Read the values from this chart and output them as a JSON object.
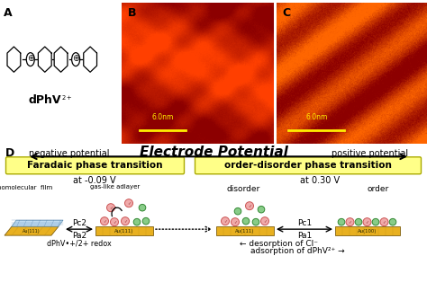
{
  "title_molecule": "dPhV",
  "title_superscript": "2+",
  "panel_A_label": "A",
  "panel_B_label": "B",
  "panel_C_label": "C",
  "panel_D_label": "D",
  "electrode_potential_title": "Electrode Potential",
  "negative_potential": "negative potential",
  "positive_potential": "positive potential",
  "faradaic_box_text": "Faradaic phase transition",
  "order_disorder_box_text": "order-disorder phase transition",
  "at_neg009": "at -0.09 V",
  "at_030": "at 0.30 V",
  "monomolecular_film": "monomolecular  film",
  "gas_like_adlayer": "gas-like adlayer",
  "disorder": "disorder",
  "order_label": "order",
  "Pc2": "Pc2",
  "Pa2": "Pa2",
  "Pc1": "Pc1",
  "Pa1": "Pa1",
  "dPhV_redox": "dPhV•+/2+ redox",
  "desorption_Cl": "← desorption of Cl⁻",
  "adsorption_dPhV": "adsorption of dPhV²⁺ →",
  "scale_bar_text": "6.0nm",
  "Au111_label": "Au(111)",
  "Au100_label": "Au(100)",
  "bg_color": "#ffffff",
  "yellow_box_color": "#ffff88",
  "faradaic_box_edge": "#aaaa00",
  "gold_surface_color": "#e8b020",
  "blue_layer_color": "#b8d8f0",
  "pink_molecule_color": "#f0aaaa",
  "pink_molecule_edge": "#cc5555",
  "green_molecule_color": "#88cc88",
  "green_molecule_edge": "#338833"
}
